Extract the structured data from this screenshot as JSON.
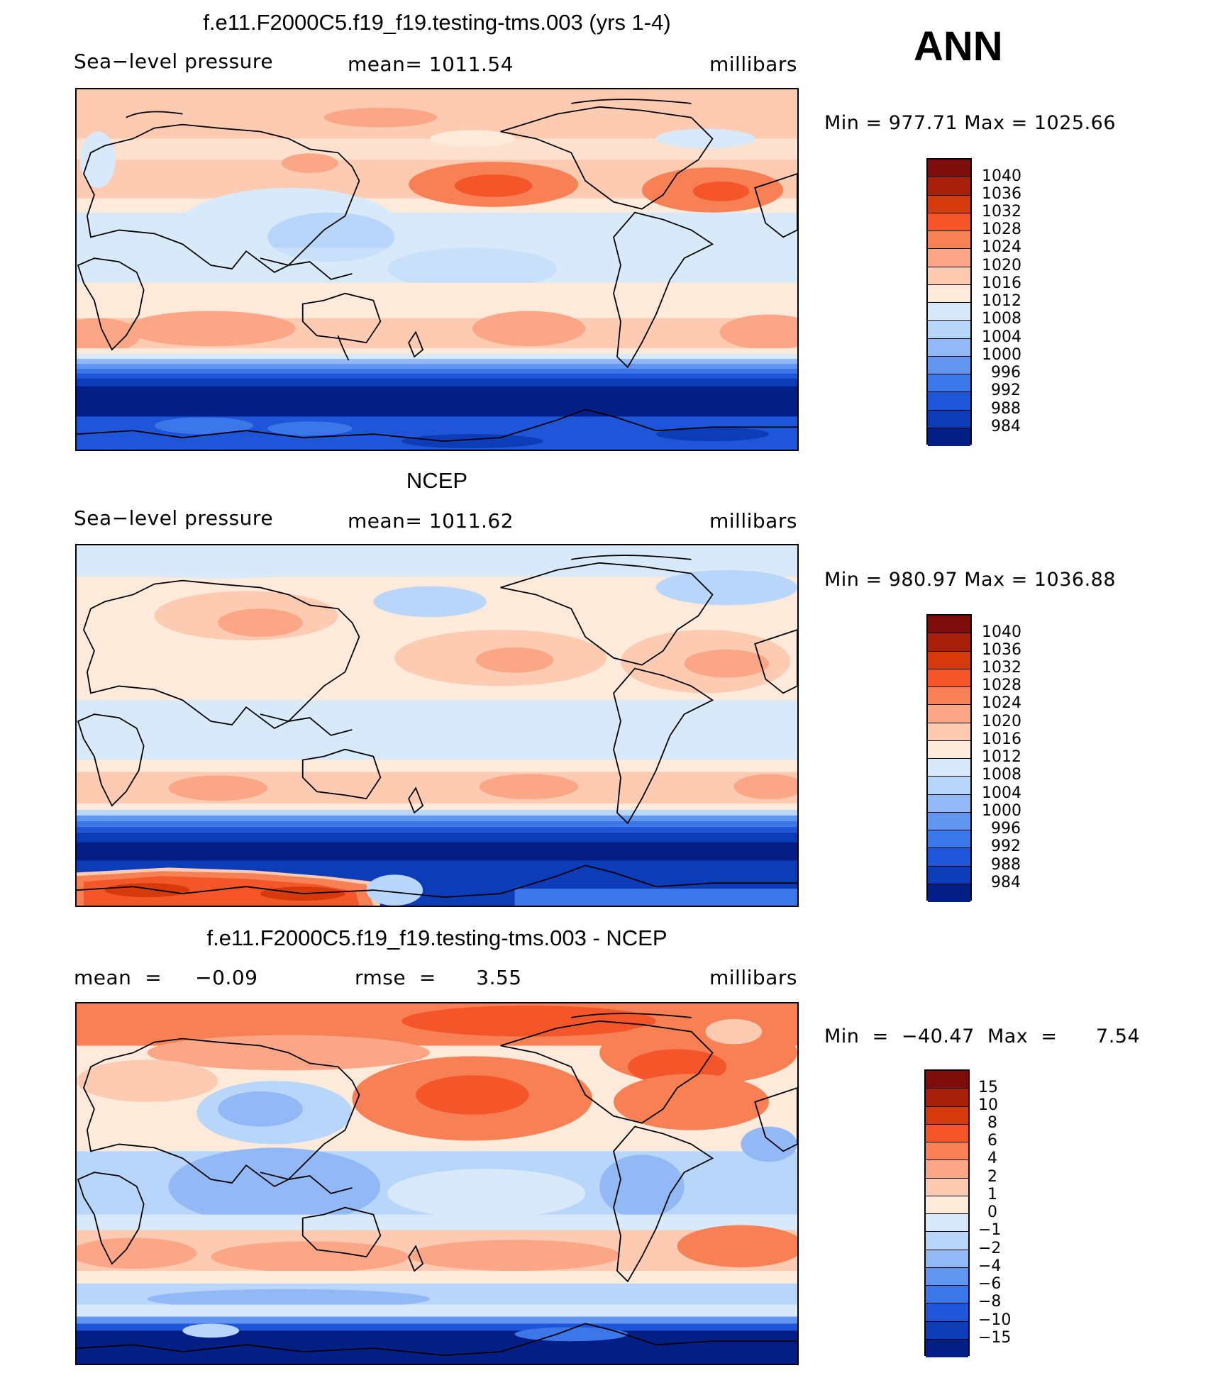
{
  "annotation": "ANN",
  "panels": [
    {
      "title": "f.e11.F2000C5.f19_f19.testing-tms.003 (yrs 1-4)",
      "left_label": "Sea−level pressure",
      "center_label": "mean=  1011.54",
      "units": "millibars",
      "minmax": "Min  =  977.71  Max  =  1025.66",
      "colorbar": {
        "labels": [
          "1040",
          "1036",
          "1032",
          "1028",
          "1024",
          "1020",
          "1016",
          "1012",
          "1008",
          "1004",
          "1000",
          "996",
          "992",
          "988",
          "984"
        ],
        "colors": [
          "#7e0d0d",
          "#a8200c",
          "#d43a0b",
          "#f4562a",
          "#f88055",
          "#fba787",
          "#fdcbb2",
          "#fdeadb",
          "#d8eafa",
          "#b8d6fa",
          "#92b8f6",
          "#6096ef",
          "#3c77ea",
          "#1f55d8",
          "#0c3cb8",
          "#031f86"
        ]
      }
    },
    {
      "title": "NCEP",
      "left_label": "Sea−level pressure",
      "center_label": "mean=  1011.62",
      "units": "millibars",
      "minmax": "Min  =  980.97  Max  =  1036.88",
      "colorbar": {
        "labels": [
          "1040",
          "1036",
          "1032",
          "1028",
          "1024",
          "1020",
          "1016",
          "1012",
          "1008",
          "1004",
          "1000",
          "996",
          "992",
          "988",
          "984"
        ],
        "colors": [
          "#7e0d0d",
          "#a8200c",
          "#d43a0b",
          "#f4562a",
          "#f88055",
          "#fba787",
          "#fdcbb2",
          "#fdeadb",
          "#d8eafa",
          "#b8d6fa",
          "#92b8f6",
          "#6096ef",
          "#3c77ea",
          "#1f55d8",
          "#0c3cb8",
          "#031f86"
        ]
      }
    },
    {
      "title": "f.e11.F2000C5.f19_f19.testing-tms.003 - NCEP",
      "left_label": "mean  =     −0.09",
      "center_label": "rmse  =      3.55",
      "units": "millibars",
      "minmax": "Min  =  −40.47  Max  =      7.54",
      "colorbar": {
        "labels": [
          "15",
          "10",
          "8",
          "6",
          "4",
          "2",
          "1",
          "0",
          "−1",
          "−2",
          "−4",
          "−6",
          "−8",
          "−10",
          "−15"
        ],
        "colors": [
          "#7e0d0d",
          "#a8200c",
          "#d43a0b",
          "#f4562a",
          "#f88055",
          "#fba787",
          "#fdcbb2",
          "#fdeadb",
          "#d8eafa",
          "#b8d6fa",
          "#92b8f6",
          "#6096ef",
          "#3c77ea",
          "#1f55d8",
          "#0c3cb8",
          "#031f86"
        ]
      }
    }
  ]
}
